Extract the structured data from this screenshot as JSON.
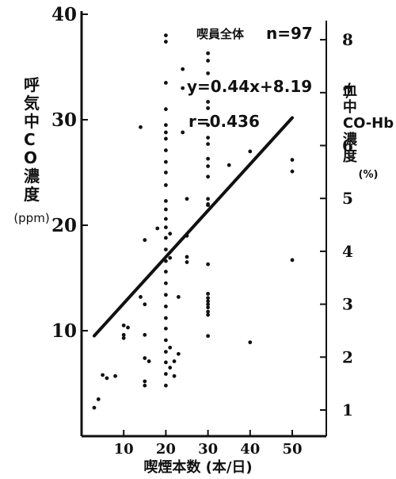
{
  "chart_data": {
    "type": "scatter",
    "xlabel": "喫煙本数 (本/日)",
    "ylabel_left": "呼気中CO濃度 (ppm)",
    "ylabel_right": "血中CO-Hb濃度 (%)",
    "xlim": [
      0,
      55
    ],
    "ylim": [
      0,
      40
    ],
    "ylim_right": [
      0,
      8.6
    ],
    "x_ticks": [
      10,
      20,
      30,
      40,
      50
    ],
    "y_ticks": [
      10,
      20,
      30,
      40
    ],
    "y_ticks_right": [
      1,
      2,
      3,
      4,
      5,
      6,
      7,
      8
    ],
    "grid": false,
    "annotations": {
      "group": "喫員全体",
      "n": "n=97",
      "equation": "y=0.44x+8.19",
      "r": "r=0.436"
    },
    "regression": {
      "slope": 0.44,
      "intercept": 8.19,
      "x_range": [
        3,
        50
      ]
    },
    "points": [
      {
        "x": 3,
        "y": 2.7
      },
      {
        "x": 4,
        "y": 3.5
      },
      {
        "x": 5,
        "y": 5.8
      },
      {
        "x": 6,
        "y": 5.5
      },
      {
        "x": 8,
        "y": 5.7
      },
      {
        "x": 10,
        "y": 10.5
      },
      {
        "x": 11,
        "y": 10.3
      },
      {
        "x": 10,
        "y": 9.6
      },
      {
        "x": 10,
        "y": 9.3
      },
      {
        "x": 14,
        "y": 29.3
      },
      {
        "x": 15,
        "y": 18.6
      },
      {
        "x": 14,
        "y": 13.2
      },
      {
        "x": 15,
        "y": 12.5
      },
      {
        "x": 15,
        "y": 9.6
      },
      {
        "x": 15,
        "y": 7.4
      },
      {
        "x": 16,
        "y": 7.1
      },
      {
        "x": 15,
        "y": 5.2
      },
      {
        "x": 15,
        "y": 4.8
      },
      {
        "x": 18,
        "y": 19.7
      },
      {
        "x": 20,
        "y": 38.0
      },
      {
        "x": 20,
        "y": 37.4
      },
      {
        "x": 20,
        "y": 33.5
      },
      {
        "x": 20,
        "y": 31.0
      },
      {
        "x": 20,
        "y": 29.5
      },
      {
        "x": 20,
        "y": 28.8
      },
      {
        "x": 20,
        "y": 28.2
      },
      {
        "x": 20,
        "y": 27.1
      },
      {
        "x": 20,
        "y": 26.0
      },
      {
        "x": 20,
        "y": 25.0
      },
      {
        "x": 20,
        "y": 23.8
      },
      {
        "x": 20,
        "y": 22.3
      },
      {
        "x": 20,
        "y": 21.5
      },
      {
        "x": 20,
        "y": 20.6
      },
      {
        "x": 20,
        "y": 19.8
      },
      {
        "x": 20,
        "y": 18.8
      },
      {
        "x": 20,
        "y": 17.7
      },
      {
        "x": 20,
        "y": 16.6
      },
      {
        "x": 20,
        "y": 15.6
      },
      {
        "x": 20,
        "y": 14.5
      },
      {
        "x": 20,
        "y": 13.4
      },
      {
        "x": 20,
        "y": 12.3
      },
      {
        "x": 20,
        "y": 11.2
      },
      {
        "x": 20,
        "y": 10.2
      },
      {
        "x": 20,
        "y": 9.1
      },
      {
        "x": 20,
        "y": 8.0
      },
      {
        "x": 20,
        "y": 7.0
      },
      {
        "x": 20,
        "y": 5.9
      },
      {
        "x": 20,
        "y": 4.8
      },
      {
        "x": 21,
        "y": 19.2
      },
      {
        "x": 21,
        "y": 16.9
      },
      {
        "x": 21,
        "y": 8.4
      },
      {
        "x": 21,
        "y": 6.5
      },
      {
        "x": 22,
        "y": 7.1
      },
      {
        "x": 22,
        "y": 5.7
      },
      {
        "x": 23,
        "y": 7.8
      },
      {
        "x": 23,
        "y": 13.2
      },
      {
        "x": 24,
        "y": 34.8
      },
      {
        "x": 24,
        "y": 33.0
      },
      {
        "x": 24,
        "y": 28.8
      },
      {
        "x": 25,
        "y": 22.5
      },
      {
        "x": 25,
        "y": 19.0
      },
      {
        "x": 25,
        "y": 17.0
      },
      {
        "x": 25,
        "y": 16.5
      },
      {
        "x": 30,
        "y": 36.3
      },
      {
        "x": 30,
        "y": 35.6
      },
      {
        "x": 30,
        "y": 34.4
      },
      {
        "x": 30,
        "y": 31.7
      },
      {
        "x": 30,
        "y": 31.1
      },
      {
        "x": 30,
        "y": 29.5
      },
      {
        "x": 30,
        "y": 28.3
      },
      {
        "x": 30,
        "y": 27.7
      },
      {
        "x": 30,
        "y": 26.3
      },
      {
        "x": 30,
        "y": 25.6
      },
      {
        "x": 30,
        "y": 24.6
      },
      {
        "x": 30,
        "y": 22.5
      },
      {
        "x": 30,
        "y": 22.0
      },
      {
        "x": 30,
        "y": 21.9
      },
      {
        "x": 30,
        "y": 16.3
      },
      {
        "x": 30,
        "y": 13.5
      },
      {
        "x": 30,
        "y": 13.1
      },
      {
        "x": 30,
        "y": 12.8
      },
      {
        "x": 30,
        "y": 12.5
      },
      {
        "x": 30,
        "y": 12.2
      },
      {
        "x": 30,
        "y": 11.8
      },
      {
        "x": 30,
        "y": 11.5
      },
      {
        "x": 30,
        "y": 9.5
      },
      {
        "x": 35,
        "y": 25.7
      },
      {
        "x": 40,
        "y": 27.0
      },
      {
        "x": 40,
        "y": 8.9
      },
      {
        "x": 50,
        "y": 26.2
      },
      {
        "x": 50,
        "y": 25.1
      },
      {
        "x": 50,
        "y": 16.7
      }
    ]
  }
}
